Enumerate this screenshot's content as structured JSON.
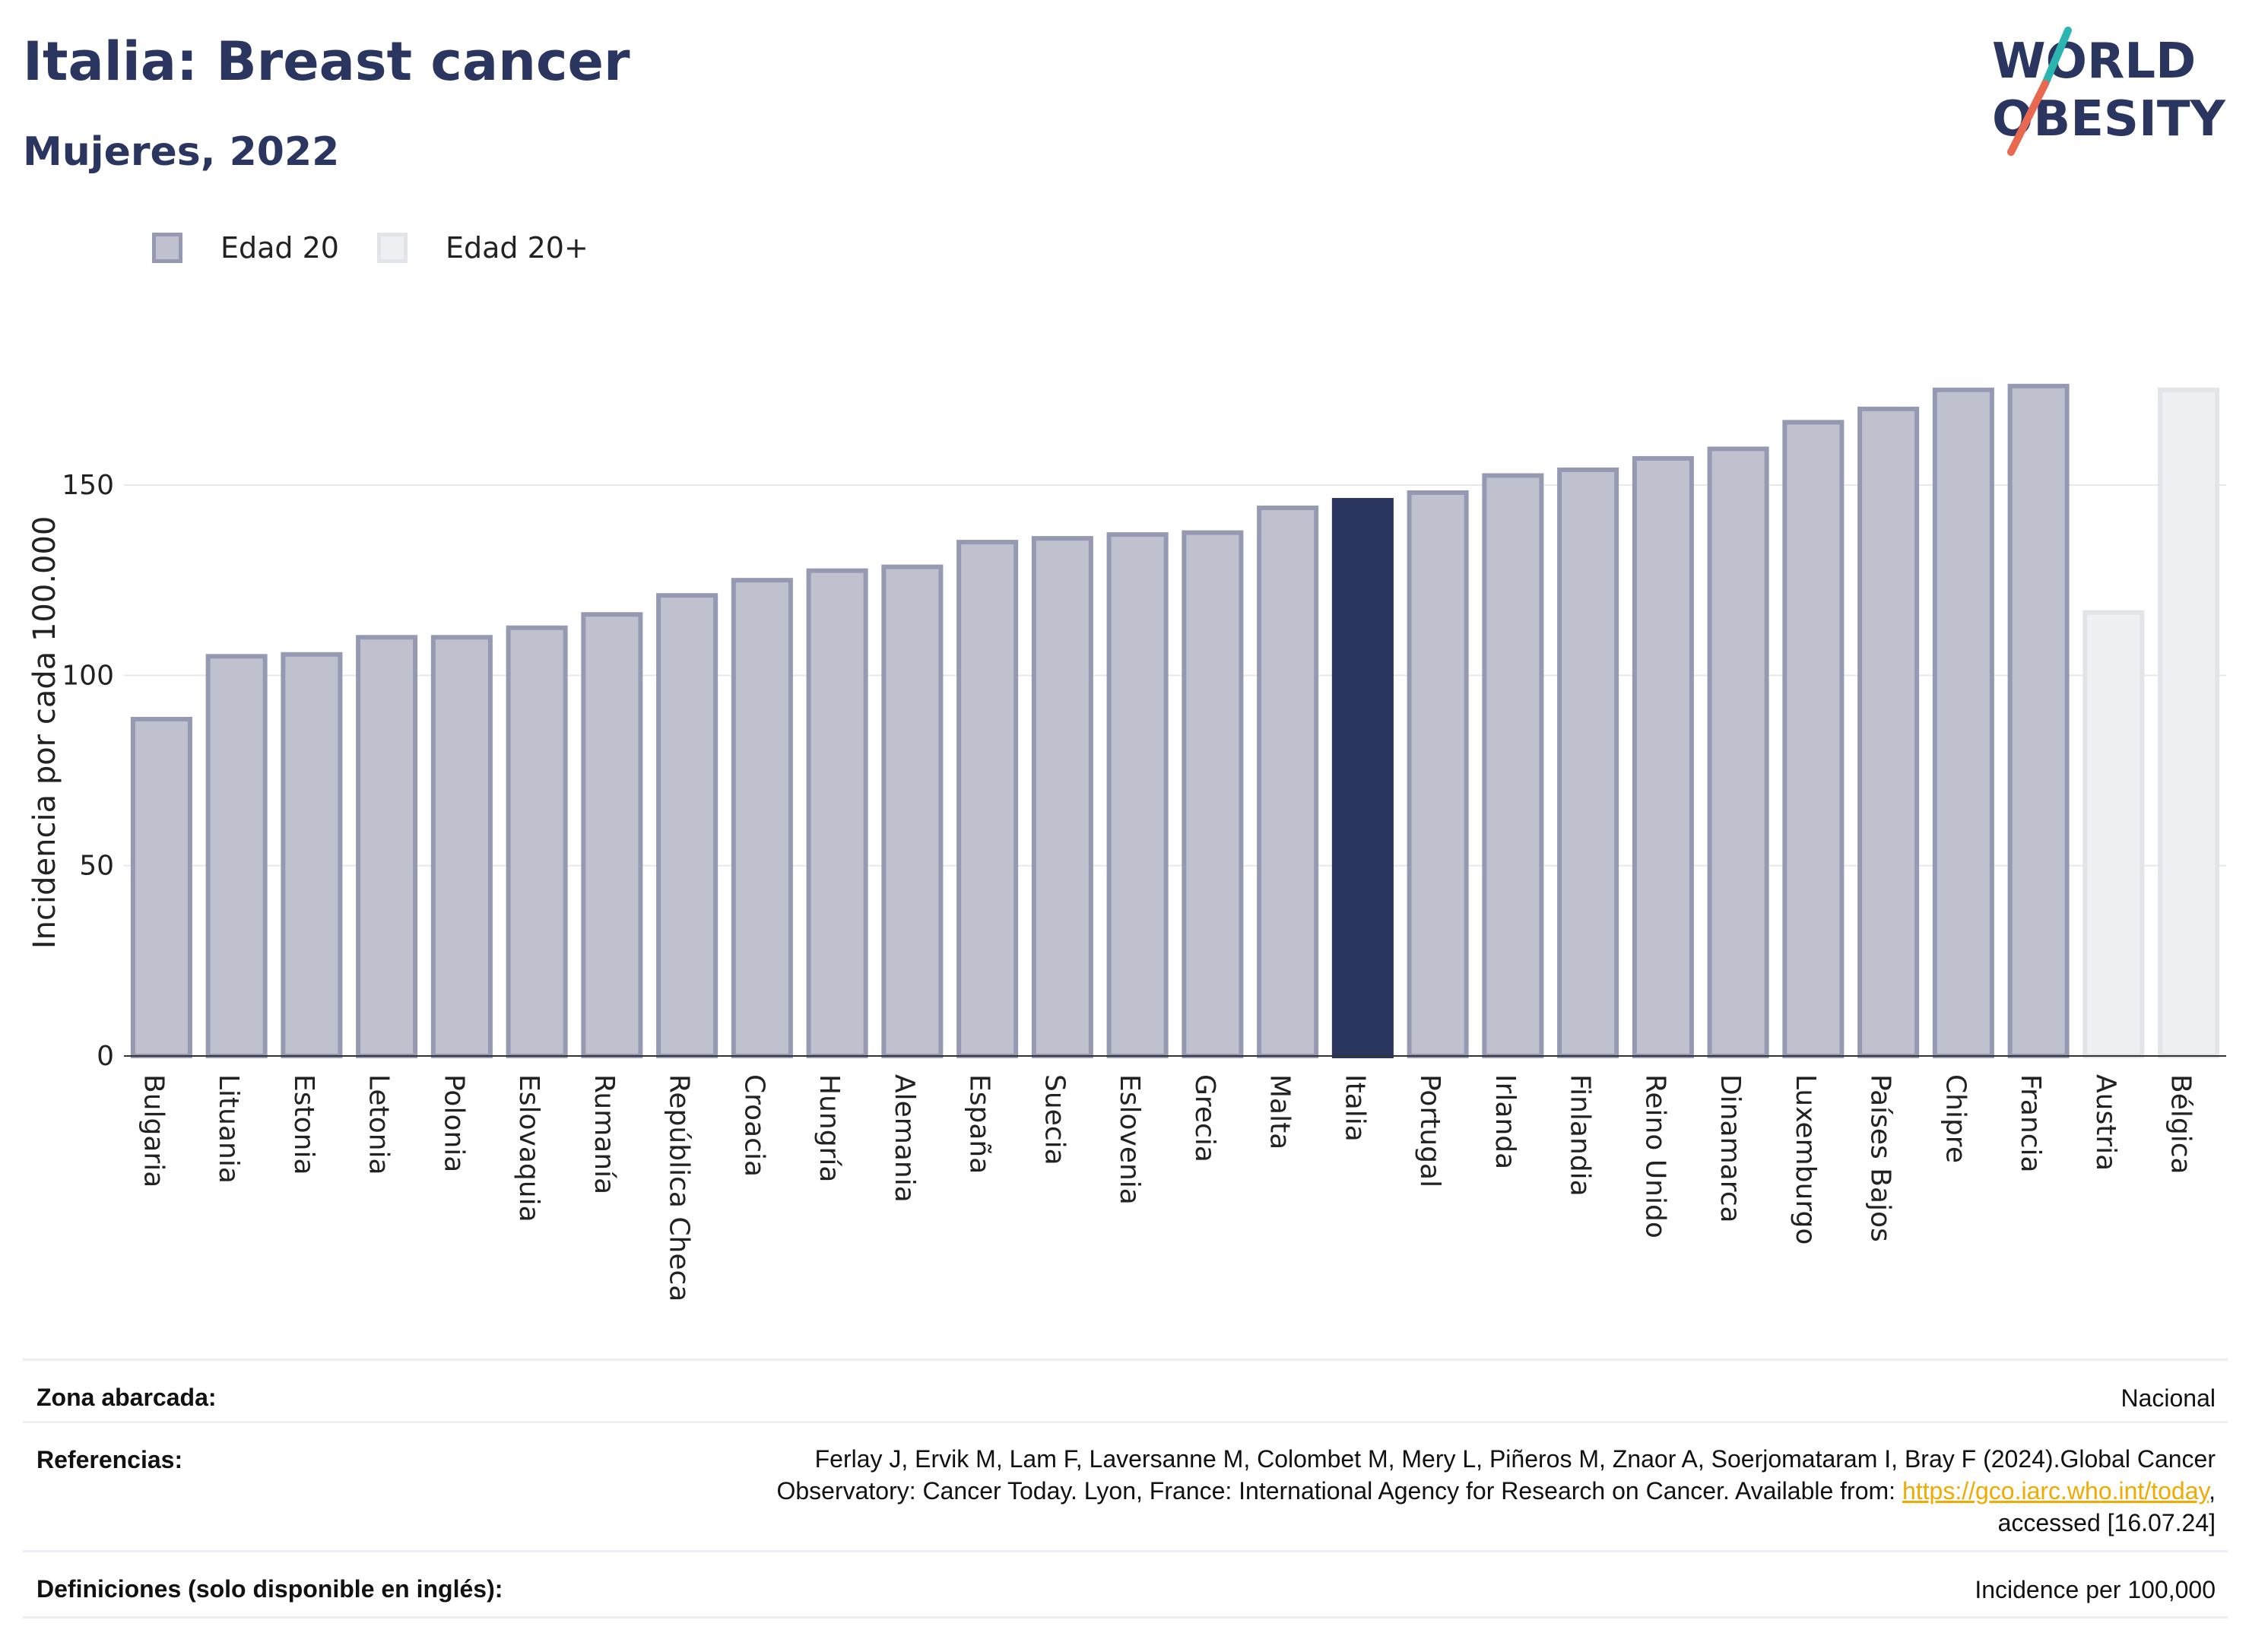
{
  "header": {
    "title": "Italia: Breast cancer",
    "subtitle": "Mujeres, 2022"
  },
  "logo": {
    "line1": "WORLD",
    "line2": "OBESITY",
    "accent_colors": [
      "#2bb5b0",
      "#e8694f"
    ]
  },
  "legend": {
    "items": [
      {
        "label": "Edad 20",
        "color": "#bfc2ce"
      },
      {
        "label": "Edad 20+",
        "color": "#eef0f3"
      }
    ]
  },
  "chart_data": {
    "type": "bar",
    "ylabel": "Incidencia por cada 100.000",
    "ylim": [
      0,
      190
    ],
    "yticks": [
      0,
      50,
      100,
      150
    ],
    "grid": true,
    "legend_position": "top-left",
    "highlight": "Italia",
    "colors": {
      "edad20_fill": "#bfc2ce",
      "edad20_stroke": "#959ab2",
      "edad20plus_fill": "#eef0f3",
      "edad20plus_stroke": "#e2e4ea",
      "highlight": "#2a3560"
    },
    "categories": [
      "Bulgaria",
      "Lituania",
      "Estonia",
      "Letonia",
      "Polonia",
      "Eslovaquia",
      "Rumanía",
      "República Checa",
      "Croacia",
      "Hungría",
      "Alemania",
      "España",
      "Suecia",
      "Eslovenia",
      "Grecia",
      "Malta",
      "Italia",
      "Portugal",
      "Irlanda",
      "Finlandia",
      "Reino Unido",
      "Dinamarca",
      "Luxemburgo",
      "Países Bajos",
      "Chipre",
      "Francia",
      "Austria",
      "Bélgica"
    ],
    "values": [
      88.5,
      105,
      105.5,
      110,
      110,
      112.5,
      116,
      121,
      125,
      127.5,
      128.5,
      135,
      136,
      137,
      137.5,
      144,
      146,
      148,
      152.5,
      154,
      157,
      159.5,
      166.5,
      170,
      175,
      176,
      116.5,
      175
    ],
    "series_group": [
      "Edad 20",
      "Edad 20",
      "Edad 20",
      "Edad 20",
      "Edad 20",
      "Edad 20",
      "Edad 20",
      "Edad 20",
      "Edad 20",
      "Edad 20",
      "Edad 20",
      "Edad 20",
      "Edad 20",
      "Edad 20",
      "Edad 20",
      "Edad 20",
      "Edad 20",
      "Edad 20",
      "Edad 20",
      "Edad 20",
      "Edad 20",
      "Edad 20",
      "Edad 20",
      "Edad 20",
      "Edad 20",
      "Edad 20",
      "Edad 20+",
      "Edad 20+"
    ]
  },
  "info": {
    "rows": [
      {
        "label": "Zona abarcada:",
        "lines": [
          "Nacional"
        ]
      },
      {
        "label": "Referencias:",
        "lines": [
          "Ferlay J, Ervik M, Lam F, Laversanne M, Colombet M, Mery L, Piñeros M, Znaor A, Soerjomataram I, Bray F (2024).Global Cancer",
          "Observatory: Cancer Today. Lyon, France: International Agency for Research on Cancer. Available from: ",
          "accessed [16.07.24]"
        ],
        "link": "https://gco.iarc.who.int/today",
        "link_suffix": ","
      },
      {
        "label": "Definiciones (solo disponible en inglés):",
        "lines": [
          "Incidence per 100,000"
        ]
      }
    ]
  }
}
